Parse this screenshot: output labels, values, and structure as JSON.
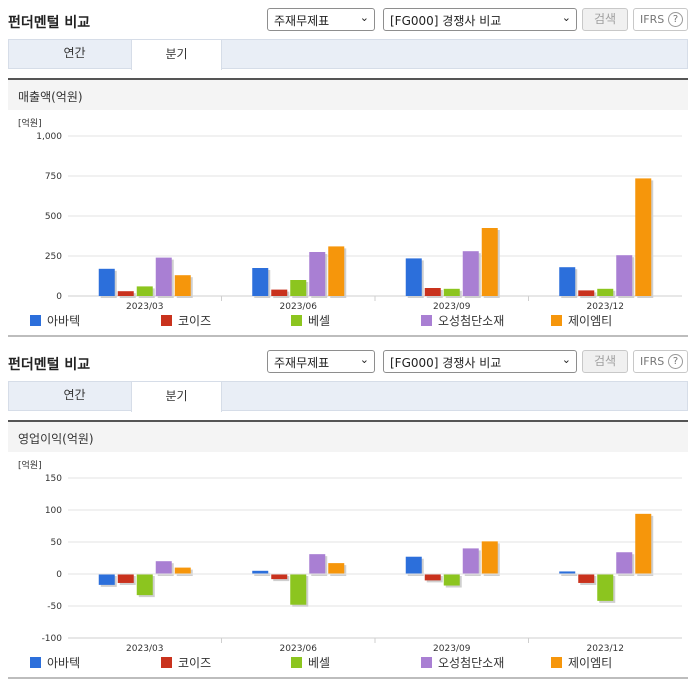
{
  "panels": [
    {
      "title": "펀더멘털 비교",
      "select1": "주재무제표",
      "select2": "[FG000] 경쟁사 비교",
      "search_label": "검색",
      "ifrs_label": "IFRS",
      "ifrs_help": "?",
      "tabs": [
        "연간",
        "분기"
      ],
      "section_title": "매출액(억원)",
      "unit": "[억원]"
    },
    {
      "title": "펀더멘털 비교",
      "select1": "주재무제표",
      "select2": "[FG000] 경쟁사 비교",
      "search_label": "검색",
      "ifrs_label": "IFRS",
      "ifrs_help": "?",
      "tabs": [
        "연간",
        "분기"
      ],
      "section_title": "영업이익(억원)",
      "unit": "[억원]"
    }
  ],
  "chart_data": [
    {
      "type": "bar",
      "title": "매출액(억원)",
      "ylabel": "[억원]",
      "ylim": [
        0,
        1000
      ],
      "yticks": [
        0,
        250,
        500,
        750,
        1000
      ],
      "ytick_labels": [
        "0",
        "250",
        "500",
        "750",
        "1,000"
      ],
      "categories": [
        "2023/03",
        "2023/06",
        "2023/09",
        "2023/12"
      ],
      "legend_position": "bottom",
      "series": [
        {
          "name": "아바텍",
          "color": "#2c6fdb",
          "values": [
            170,
            175,
            235,
            180
          ]
        },
        {
          "name": "코이즈",
          "color": "#c9321d",
          "values": [
            30,
            40,
            50,
            35
          ]
        },
        {
          "name": "베셀",
          "color": "#8cc51f",
          "values": [
            60,
            100,
            45,
            45
          ]
        },
        {
          "name": "오성첨단소재",
          "color": "#a97fd3",
          "values": [
            240,
            275,
            280,
            255
          ]
        },
        {
          "name": "제이엠티",
          "color": "#f6960b",
          "values": [
            130,
            310,
            425,
            735
          ]
        }
      ]
    },
    {
      "type": "bar",
      "title": "영업이익(억원)",
      "ylabel": "[억원]",
      "ylim": [
        -100,
        150
      ],
      "yticks": [
        -100,
        -50,
        0,
        50,
        100,
        150
      ],
      "ytick_labels": [
        "-100",
        "-50",
        "0",
        "50",
        "100",
        "150"
      ],
      "categories": [
        "2023/03",
        "2023/06",
        "2023/09",
        "2023/12"
      ],
      "legend_position": "bottom",
      "series": [
        {
          "name": "아바텍",
          "color": "#2c6fdb",
          "values": [
            -17,
            5,
            27,
            4
          ]
        },
        {
          "name": "코이즈",
          "color": "#c9321d",
          "values": [
            -14,
            -8,
            -10,
            -14
          ]
        },
        {
          "name": "베셀",
          "color": "#8cc51f",
          "values": [
            -33,
            -48,
            -18,
            -42
          ]
        },
        {
          "name": "오성첨단소재",
          "color": "#a97fd3",
          "values": [
            20,
            31,
            40,
            34
          ]
        },
        {
          "name": "제이엠티",
          "color": "#f6960b",
          "values": [
            10,
            17,
            51,
            94
          ]
        }
      ]
    }
  ]
}
